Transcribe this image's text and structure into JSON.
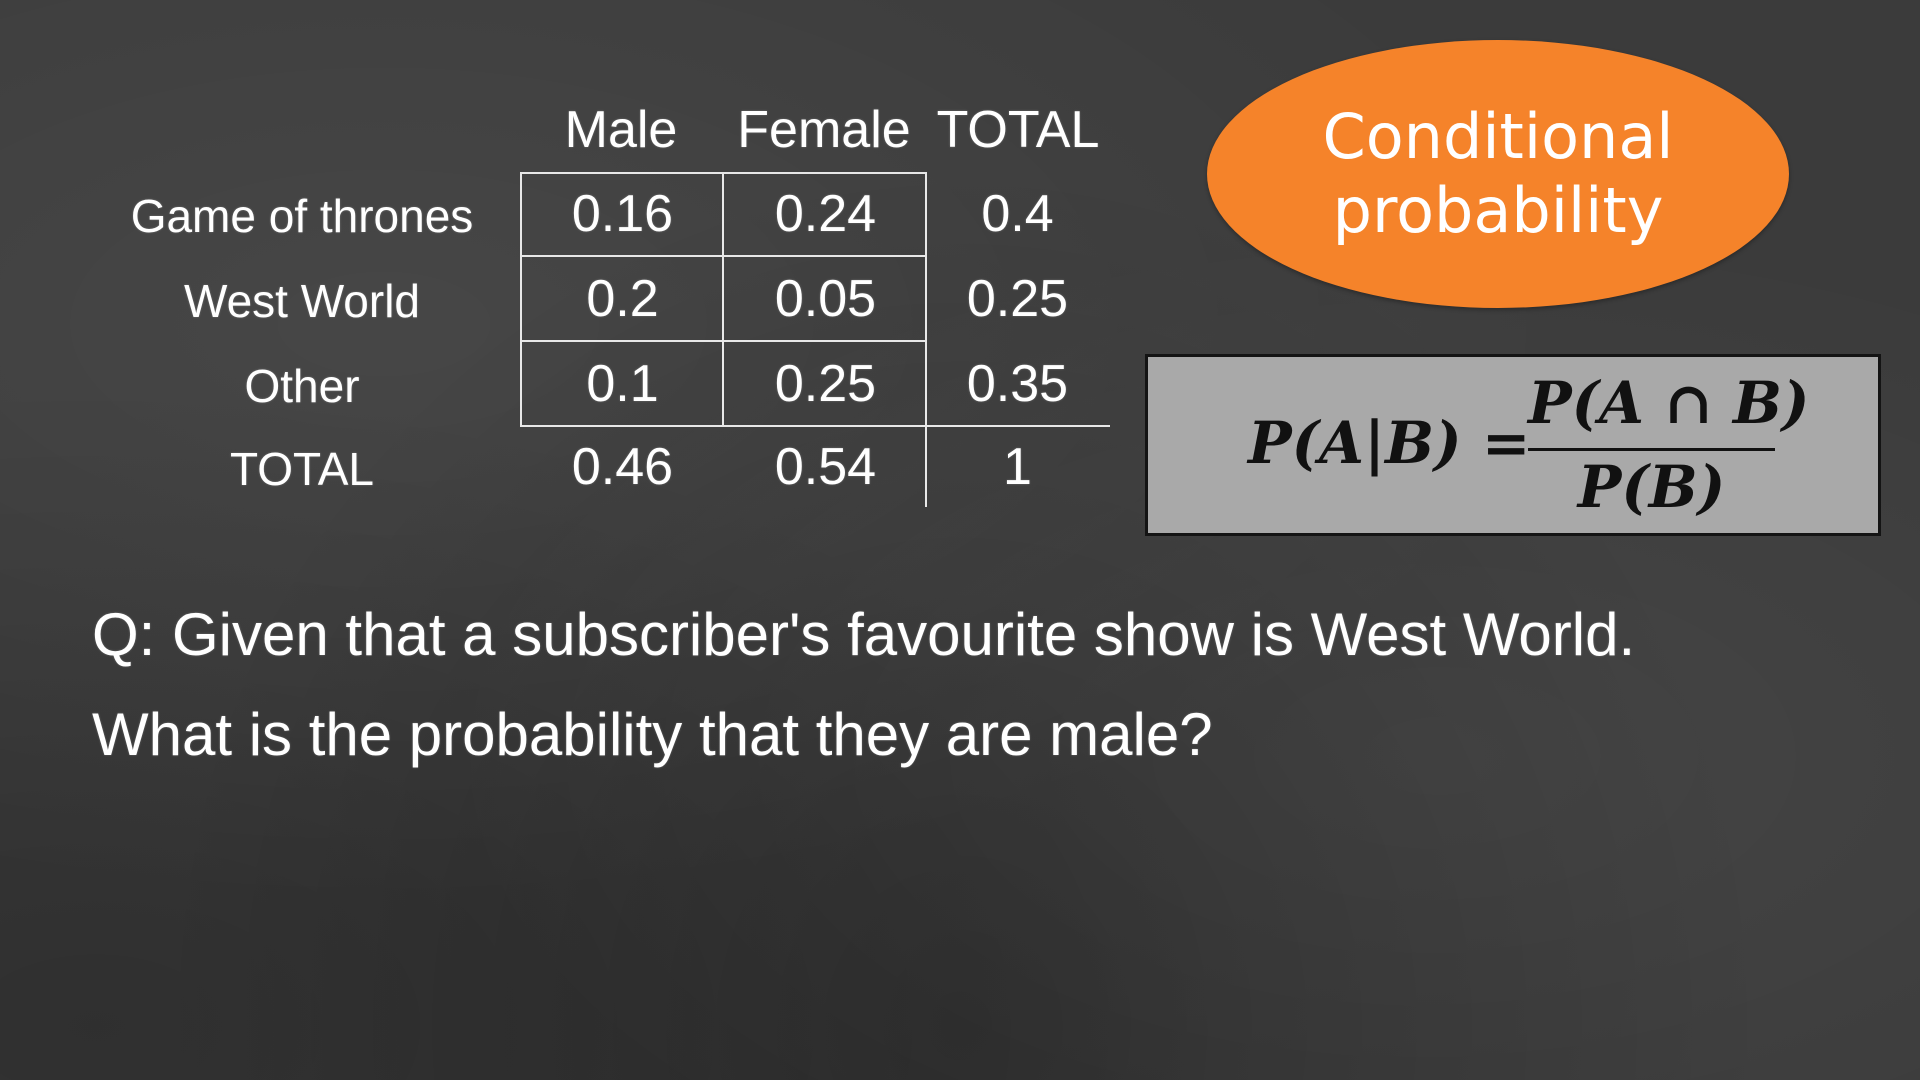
{
  "table": {
    "columns": [
      "Male",
      "Female",
      "TOTAL"
    ],
    "rows": [
      {
        "label": "Game of thrones",
        "values": [
          "0.16",
          "0.24",
          "0.4"
        ]
      },
      {
        "label": "West World",
        "values": [
          "0.2",
          "0.05",
          "0.25"
        ]
      },
      {
        "label": "Other",
        "values": [
          "0.1",
          "0.25",
          "0.35"
        ]
      },
      {
        "label": "TOTAL",
        "values": [
          "0.46",
          "0.54",
          "1"
        ]
      }
    ]
  },
  "badge": {
    "text": "Conditional probability",
    "color": "#f5832a"
  },
  "formula": {
    "lhs": "P(A|B) =",
    "numerator": "P(A ∩ B)",
    "denominator": "P(B)"
  },
  "question": {
    "line1": "Q: Given that a subscriber's favourite show is West World.",
    "line2": "What is the probability that they are male?"
  }
}
